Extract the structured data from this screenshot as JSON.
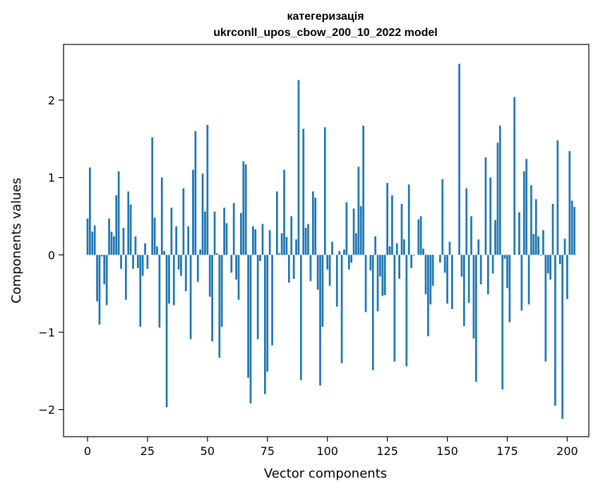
{
  "chart_data": {
    "type": "bar",
    "title_line1": "категеризація",
    "title_line2": "ukrconll_upos_cbow_200_10_2022 model",
    "xlabel": "Vector components",
    "ylabel": "Components values",
    "xlim": [
      -10,
      209
    ],
    "ylim": [
      -2.35,
      2.72
    ],
    "xticks": [
      0,
      25,
      50,
      75,
      100,
      125,
      150,
      175,
      200
    ],
    "yticks": [
      -2,
      -1,
      0,
      1,
      2
    ],
    "ytick_labels": [
      "−2",
      "−1",
      "0",
      "1",
      "2"
    ],
    "bar_color": "#1f77b4",
    "values": [
      0.47,
      1.13,
      0.3,
      0.38,
      -0.6,
      -0.9,
      -0.02,
      -0.38,
      -0.65,
      0.47,
      0.3,
      0.24,
      0.77,
      1.08,
      -0.18,
      0.35,
      -0.58,
      0.82,
      0.65,
      -0.18,
      0.24,
      -0.17,
      -0.93,
      -0.27,
      0.15,
      -0.18,
      0.0,
      1.52,
      0.48,
      0.11,
      -0.94,
      1.0,
      0.05,
      -1.97,
      -0.63,
      0.61,
      -0.65,
      0.37,
      -0.19,
      -0.27,
      0.86,
      -0.47,
      0.37,
      -1.09,
      1.1,
      1.6,
      -0.35,
      0.07,
      1.05,
      0.56,
      1.68,
      -0.54,
      -1.12,
      0.56,
      0.02,
      -1.33,
      -0.93,
      0.61,
      0.41,
      0.0,
      -0.23,
      0.67,
      -0.32,
      -0.58,
      0.54,
      1.21,
      1.17,
      -1.59,
      -1.92,
      0.37,
      0.33,
      -1.09,
      -0.08,
      0.4,
      -1.8,
      -1.51,
      0.32,
      -1.17,
      0.0,
      0.82,
      0.02,
      0.28,
      1.1,
      0.23,
      -0.36,
      0.5,
      -0.31,
      0.2,
      2.26,
      -1.62,
      1.63,
      0.35,
      0.4,
      -0.34,
      0.82,
      0.74,
      -0.45,
      -1.69,
      -0.93,
      1.65,
      -0.19,
      -0.4,
      0.17,
      0.0,
      -0.67,
      0.05,
      -1.4,
      0.07,
      0.68,
      -0.19,
      -0.1,
      0.6,
      0.28,
      1.14,
      0.63,
      1.67,
      -0.74,
      0.0,
      -0.2,
      -1.49,
      0.24,
      -0.73,
      -0.28,
      -0.53,
      -0.52,
      0.93,
      0.11,
      0.77,
      -1.38,
      0.15,
      -0.31,
      0.66,
      0.2,
      -1.44,
      0.91,
      -0.17,
      -0.01,
      0.0,
      0.46,
      0.5,
      0.08,
      -0.51,
      -1.05,
      -0.64,
      -0.4,
      0.0,
      0.0,
      -0.1,
      0.98,
      -0.23,
      -0.63,
      0.17,
      -0.7,
      0.0,
      0.0,
      2.47,
      -0.28,
      -0.92,
      0.86,
      -0.62,
      0.5,
      -1.08,
      -1.64,
      0.2,
      -0.38,
      0.0,
      1.26,
      -0.51,
      1.0,
      -0.24,
      0.45,
      1.45,
      1.67,
      -1.74,
      -0.05,
      -0.43,
      -0.87,
      0.0,
      2.04,
      0.0,
      0.55,
      -0.72,
      1.08,
      1.24,
      -0.64,
      0.9,
      0.27,
      0.72,
      0.24,
      -0.01,
      0.32,
      -1.38,
      -0.24,
      -0.32,
      0.66,
      -1.95,
      1.48,
      -0.12,
      -2.12,
      0.21,
      -0.57,
      1.34,
      0.7,
      0.62
    ]
  }
}
